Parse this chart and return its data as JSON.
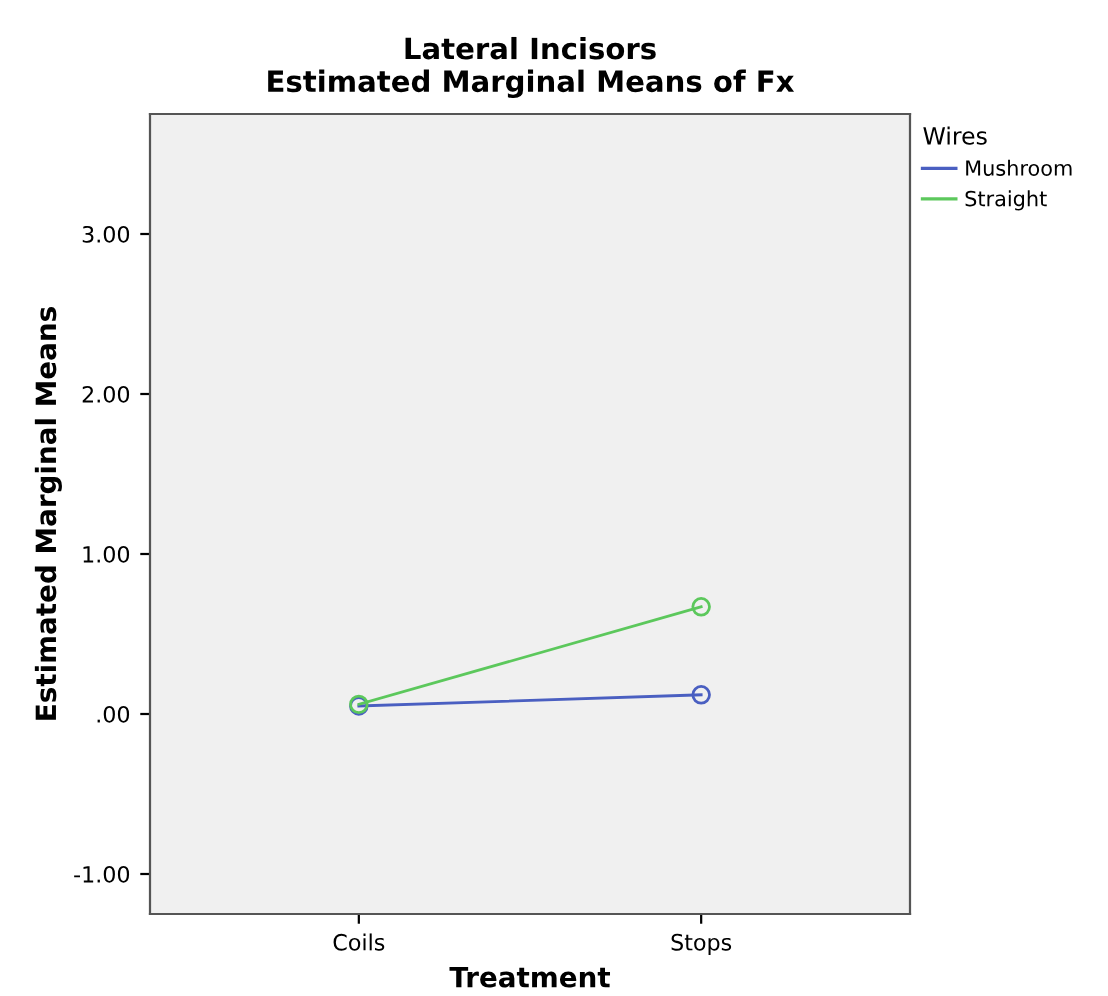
{
  "chart_data": {
    "type": "line",
    "title": "Lateral Incisors\nEstimated Marginal Means of Fx",
    "xlabel": "Treatment",
    "ylabel": "Estimated Marginal Means",
    "legend_title": "Wires",
    "categories": [
      "Coils",
      "Stops"
    ],
    "series": [
      {
        "name": "Mushroom",
        "color": "#4a5fc1",
        "values": [
          0.05,
          0.12
        ]
      },
      {
        "name": "Straight",
        "color": "#5cc85c",
        "values": [
          0.06,
          0.67
        ]
      }
    ],
    "ylim": [
      -1.25,
      3.75
    ],
    "yticks": [
      {
        "value": -1,
        "label": "-1.00"
      },
      {
        "value": 0,
        "label": ".00"
      },
      {
        "value": 1,
        "label": "1.00"
      },
      {
        "value": 2,
        "label": "2.00"
      },
      {
        "value": 3,
        "label": "3.00"
      }
    ],
    "marker": "circle",
    "legend": "top right",
    "grid": false
  }
}
